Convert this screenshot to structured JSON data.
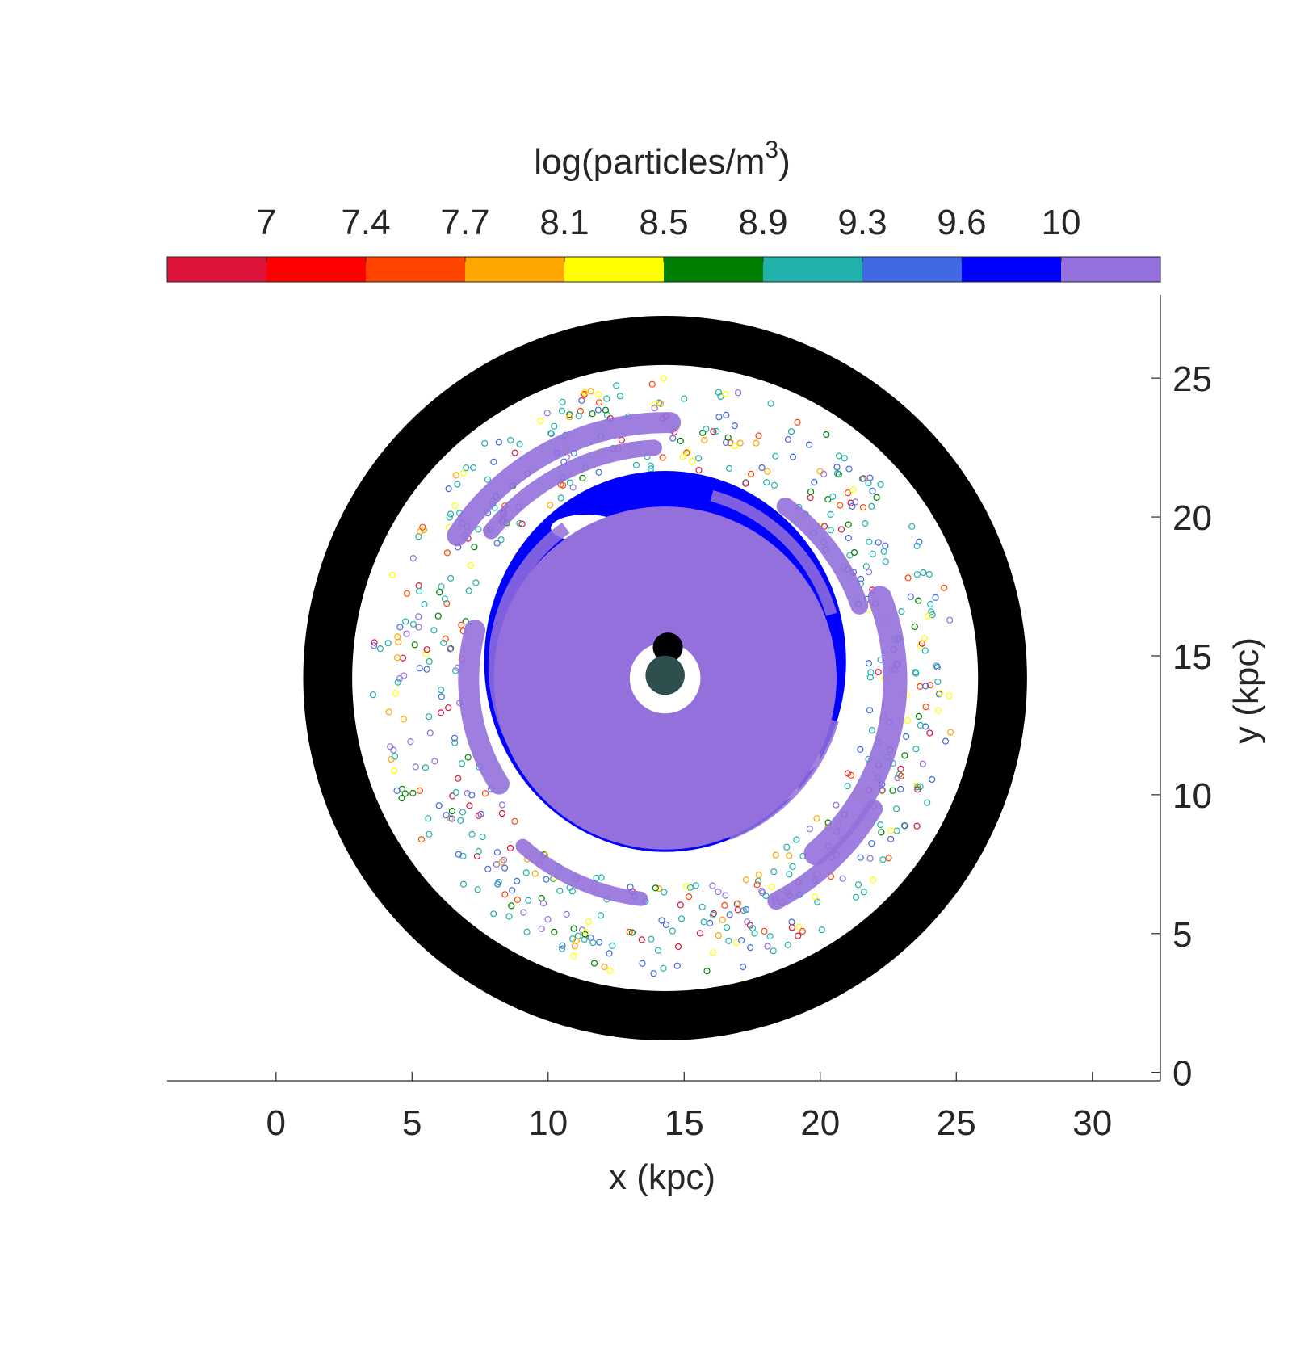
{
  "chart_data": {
    "type": "scatter",
    "title": "",
    "xlabel": "x (kpc)",
    "ylabel": "y (kpc)",
    "xlim": [
      -4,
      32.5
    ],
    "ylim": [
      -0.3,
      28
    ],
    "x_ticks": [
      0,
      5,
      10,
      15,
      20,
      25,
      30
    ],
    "y_ticks": [
      0,
      5,
      10,
      15,
      20,
      25
    ],
    "grid": false,
    "colorbar": {
      "label_prefix": "log(particles/m",
      "label_exponent": "3",
      "label_suffix": ")",
      "placement": "top",
      "tick_labels": [
        "7",
        "7.4",
        "7.7",
        "8.1",
        "8.5",
        "8.9",
        "9.3",
        "9.6",
        "10"
      ],
      "colors": [
        "#DC143C",
        "#FF0000",
        "#FF4500",
        "#FFA500",
        "#FFFF00",
        "#008000",
        "#20B2AA",
        "#4169E1",
        "#0000FF",
        "#9370DB"
      ]
    },
    "structures": [
      {
        "name": "outer black ring",
        "color": "#000000",
        "center": [
          14.3,
          14.2
        ],
        "r_inner": 11.5,
        "r_outer": 13.3
      },
      {
        "name": "purple central disk",
        "color": "#9370DB",
        "center": [
          14.3,
          14.2
        ],
        "r_inner": 1.3,
        "r_outer": 6.3
      },
      {
        "name": "blue high density band",
        "color": "#0000FF",
        "center": [
          14.3,
          14.8
        ],
        "r_inner": 5.0,
        "r_outer": 7.0
      },
      {
        "name": "central black cores",
        "color": "#000000",
        "points": [
          [
            14.4,
            15.3
          ],
          [
            14.3,
            14.3
          ]
        ]
      }
    ],
    "scatter_points": {
      "note": "sparse low density particles between disk and ring",
      "count": 620,
      "radius_range": [
        7.5,
        10.8
      ]
    }
  }
}
